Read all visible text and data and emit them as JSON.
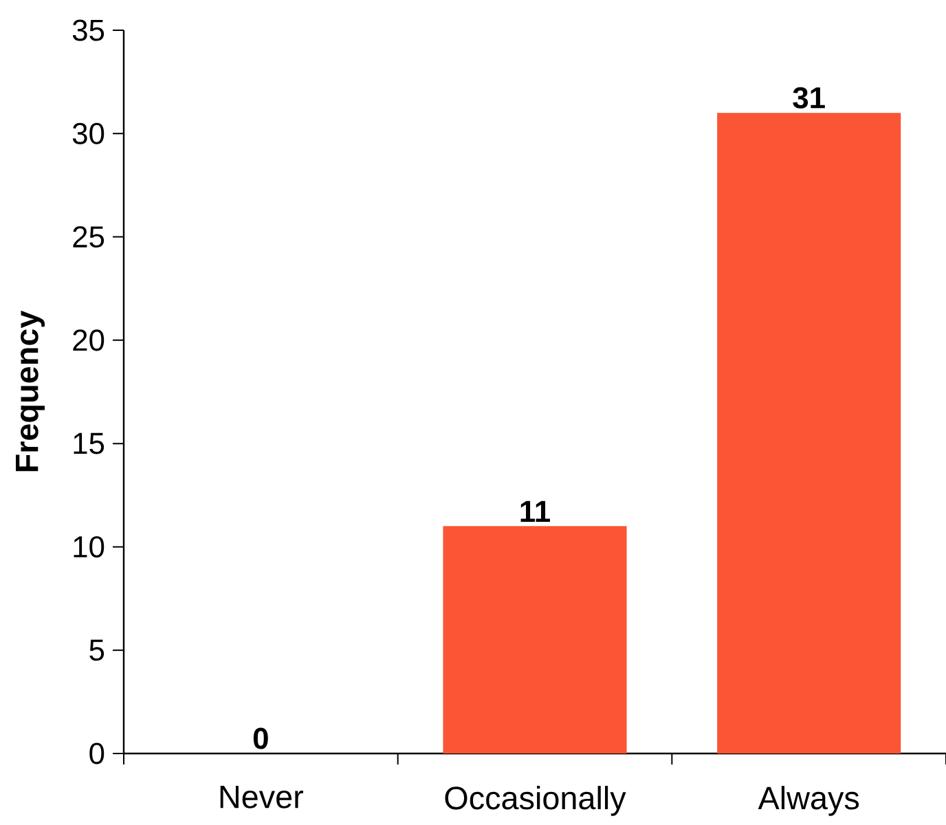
{
  "chart_data": {
    "type": "bar",
    "ylabel": "Frequency",
    "categories": [
      "Never",
      "Occasionally",
      "Always"
    ],
    "values": [
      0,
      11,
      31
    ],
    "color": "#fa5535",
    "ylim": [
      0,
      35
    ],
    "yticks": [
      0,
      5,
      10,
      15,
      20,
      25,
      30,
      35
    ],
    "data_labels": true
  }
}
